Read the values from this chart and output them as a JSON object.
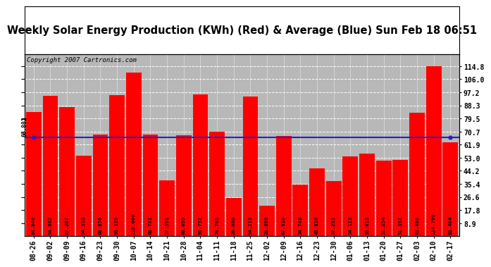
{
  "title": "Weekly Solar Energy Production (KWh) (Red) & Average (Blue) Sun Feb 18 06:51",
  "copyright": "Copyright 2007 Cartronics.com",
  "categories": [
    "08-26",
    "09-02",
    "09-09",
    "09-16",
    "09-23",
    "09-30",
    "10-07",
    "10-14",
    "10-21",
    "10-28",
    "11-04",
    "11-11",
    "11-18",
    "11-25",
    "12-02",
    "12-09",
    "12-16",
    "12-23",
    "12-30",
    "01-06",
    "01-13",
    "01-20",
    "01-27",
    "02-03",
    "02-10",
    "02-17"
  ],
  "values": [
    84.049,
    94.682,
    87.207,
    54.533,
    68.856,
    95.135,
    110.606,
    68.781,
    37.591,
    68.099,
    95.752,
    70.705,
    26.086,
    94.213,
    20.698,
    67.916,
    34.748,
    45.816,
    37.293,
    54.113,
    55.613,
    51.254,
    51.392,
    83.486,
    114.799,
    63.404
  ],
  "average": 66.801,
  "bar_color": "#ff0000",
  "avg_line_color": "#2222cc",
  "fig_background": "#ffffff",
  "title_background": "#ffffff",
  "plot_background": "#b8b8b8",
  "grid_color": "#ffffff",
  "ytick_vals": [
    8.9,
    17.8,
    26.6,
    35.4,
    44.2,
    53.0,
    61.9,
    70.7,
    79.5,
    88.3,
    97.2,
    106.0,
    114.8
  ],
  "ymin": 0,
  "ymax": 123,
  "avg_label": "66.801",
  "title_fontsize": 10.5,
  "copyright_fontsize": 6.5,
  "tick_fontsize": 7,
  "bar_label_fontsize": 5.2
}
